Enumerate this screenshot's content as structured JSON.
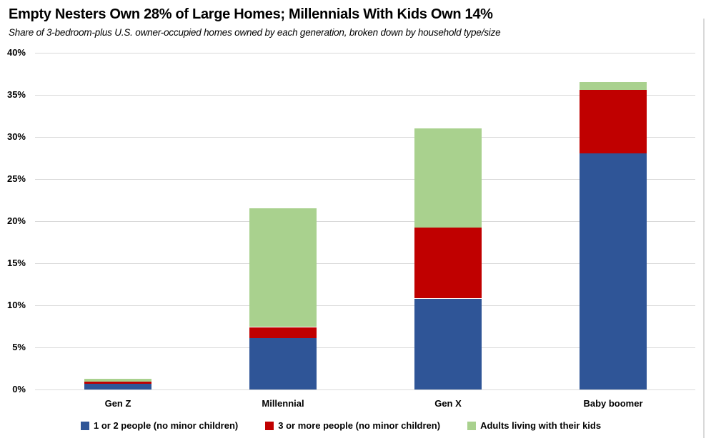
{
  "header": {
    "title": "Empty Nesters Own 28% of Large Homes; Millennials With Kids Own 14%",
    "subtitle": "Share of 3-bedroom-plus U.S. owner-occupied homes owned by each generation, broken down by household type/size"
  },
  "chart_data": {
    "type": "bar",
    "stacked": true,
    "title": "Empty Nesters Own 28% of Large Homes; Millennials With Kids Own 14%",
    "subtitle": "Share of 3-bedroom-plus U.S. owner-occupied homes owned by each generation, broken down by household type/size",
    "categories": [
      "Gen Z",
      "Millennial",
      "Gen X",
      "Baby boomer"
    ],
    "series": [
      {
        "name": "1 or 2 people (no minor children)",
        "color": "#2F5597",
        "values": [
          0.7,
          6.1,
          10.8,
          28.1
        ]
      },
      {
        "name": "3 or more people (no minor children)",
        "color": "#C00000",
        "values": [
          0.3,
          1.3,
          8.4,
          7.5
        ]
      },
      {
        "name": "Adults living with their kids",
        "color": "#A9D18E",
        "values": [
          0.3,
          14.1,
          11.8,
          0.9
        ]
      }
    ],
    "stack_totals": [
      1.3,
      21.5,
      31.0,
      36.5
    ],
    "xlabel": "",
    "ylabel": "",
    "ylim": [
      0,
      40
    ],
    "ytick_step": 5,
    "yticks": [
      "0%",
      "5%",
      "10%",
      "15%",
      "20%",
      "25%",
      "30%",
      "35%",
      "40%"
    ],
    "grid": true,
    "gridline_color": "#D9D9D9",
    "legend_position": "bottom"
  }
}
